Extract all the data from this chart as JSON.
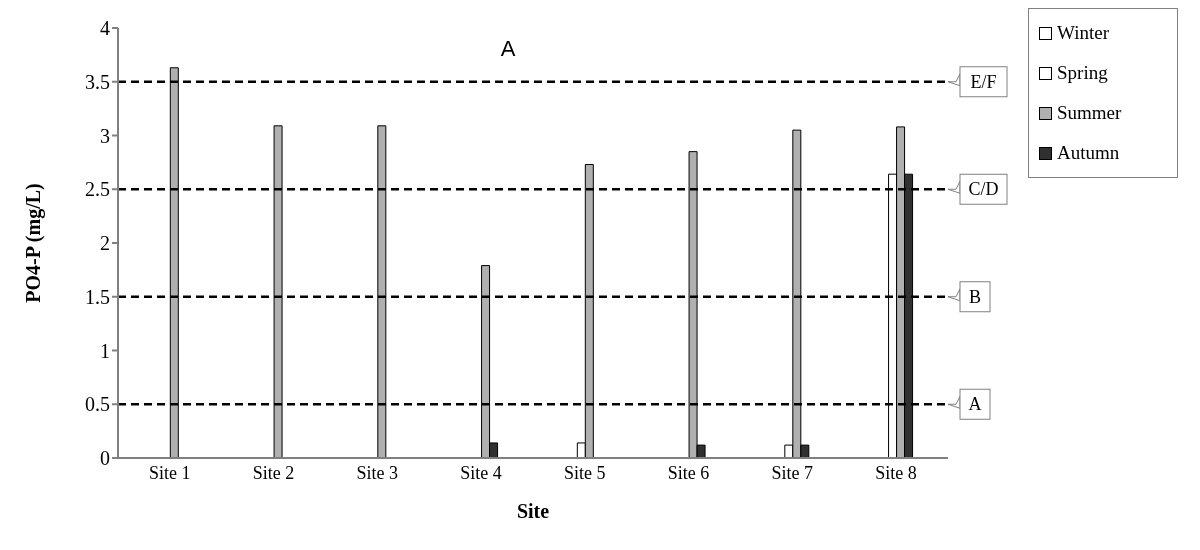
{
  "chart_data": {
    "type": "bar",
    "title": "A",
    "xlabel": "Site",
    "ylabel": "PO4-P (mg/L)",
    "categories": [
      "Site 1",
      "Site 2",
      "Site 3",
      "Site 4",
      "Site 5",
      "Site 6",
      "Site 7",
      "Site 8"
    ],
    "series": [
      {
        "name": "Winter",
        "color": "#ffffff",
        "values": [
          0,
          0,
          0,
          0,
          0,
          0,
          0,
          0
        ]
      },
      {
        "name": "Spring",
        "color": "#ffffff",
        "values": [
          0,
          0,
          0,
          0,
          0.14,
          0,
          0.12,
          2.64
        ]
      },
      {
        "name": "Summer",
        "color": "#b0b0b0",
        "values": [
          3.63,
          3.09,
          3.09,
          1.79,
          2.73,
          2.85,
          3.05,
          3.08
        ]
      },
      {
        "name": "Autumn",
        "color": "#303030",
        "values": [
          0,
          0,
          0,
          0.14,
          0,
          0.12,
          0.12,
          2.64
        ]
      }
    ],
    "ylim": [
      0,
      4
    ],
    "yticks": [
      0,
      0.5,
      1,
      1.5,
      2,
      2.5,
      3,
      3.5,
      4
    ],
    "grid": false,
    "legend": "top right",
    "ref_lines": [
      {
        "axis": "y",
        "value": 3.5,
        "label": "E/F",
        "color": "#000000",
        "line_style": "dashed"
      },
      {
        "axis": "y",
        "value": 2.5,
        "label": "C/D",
        "color": "#000000",
        "line_style": "dashed"
      },
      {
        "axis": "y",
        "value": 1.5,
        "label": "B",
        "color": "#000000",
        "line_style": "dashed"
      },
      {
        "axis": "y",
        "value": 0.5,
        "label": "A",
        "color": "#000000",
        "line_style": "dashed"
      }
    ]
  }
}
